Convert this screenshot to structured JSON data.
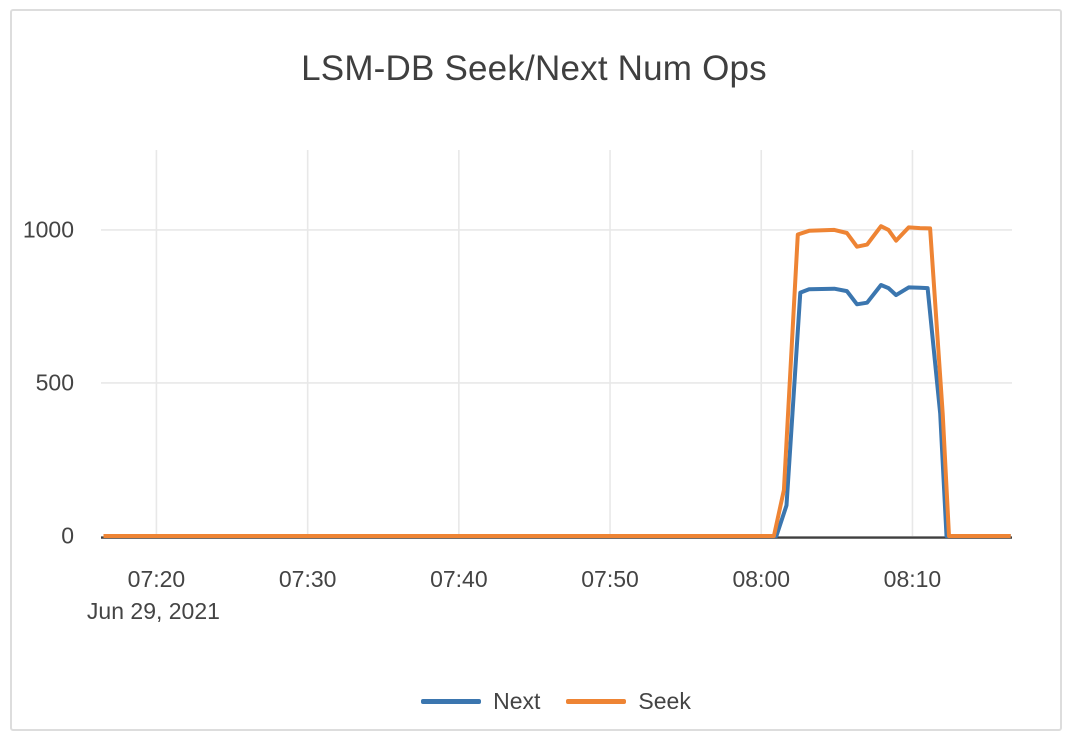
{
  "chart_data": {
    "type": "line",
    "title": "LSM-DB Seek/Next Num Ops",
    "xlabel": "",
    "ylabel": "",
    "grid": true,
    "legend_position": "bottom-center",
    "x_axis": {
      "date_label": "Jun 29, 2021",
      "range": [
        "07:16:20",
        "08:16:35"
      ],
      "ticks": [
        {
          "label": "07:20",
          "time": "07:20:00"
        },
        {
          "label": "07:30",
          "time": "07:30:00"
        },
        {
          "label": "07:40",
          "time": "07:40:00"
        },
        {
          "label": "07:50",
          "time": "07:50:00"
        },
        {
          "label": "08:00",
          "time": "08:00:00"
        },
        {
          "label": "08:10",
          "time": "08:10:00"
        }
      ]
    },
    "y_axis": {
      "range": [
        0,
        1261
      ],
      "ticks": [
        0,
        500,
        1000
      ]
    },
    "series": [
      {
        "name": "Next",
        "color": "#3b76af",
        "points": [
          [
            "07:16:30",
            0
          ],
          [
            "08:01:00",
            0
          ],
          [
            "08:01:40",
            100
          ],
          [
            "08:02:35",
            795
          ],
          [
            "08:03:10",
            806
          ],
          [
            "08:04:50",
            808
          ],
          [
            "08:05:40",
            800
          ],
          [
            "08:06:20",
            757
          ],
          [
            "08:07:00",
            762
          ],
          [
            "08:07:55",
            820
          ],
          [
            "08:08:25",
            810
          ],
          [
            "08:08:55",
            787
          ],
          [
            "08:09:45",
            812
          ],
          [
            "08:10:30",
            811
          ],
          [
            "08:11:00",
            810
          ],
          [
            "08:11:50",
            400
          ],
          [
            "08:12:15",
            0
          ],
          [
            "08:16:30",
            0
          ]
        ]
      },
      {
        "name": "Seek",
        "color": "#ee8434",
        "points": [
          [
            "07:16:30",
            0
          ],
          [
            "08:00:50",
            0
          ],
          [
            "08:01:30",
            150
          ],
          [
            "08:02:25",
            985
          ],
          [
            "08:03:10",
            997
          ],
          [
            "08:04:50",
            1000
          ],
          [
            "08:05:40",
            990
          ],
          [
            "08:06:20",
            945
          ],
          [
            "08:07:00",
            952
          ],
          [
            "08:07:55",
            1012
          ],
          [
            "08:08:25",
            1000
          ],
          [
            "08:08:55",
            965
          ],
          [
            "08:09:45",
            1008
          ],
          [
            "08:10:30",
            1006
          ],
          [
            "08:11:10",
            1005
          ],
          [
            "08:12:00",
            400
          ],
          [
            "08:12:25",
            0
          ],
          [
            "08:16:30",
            0
          ]
        ]
      }
    ],
    "colors": {
      "grid": "#e8e8e8",
      "zero_line": "#3f3f3f",
      "text": "#444444",
      "card_border": "#dddddd",
      "background": "#ffffff"
    }
  }
}
